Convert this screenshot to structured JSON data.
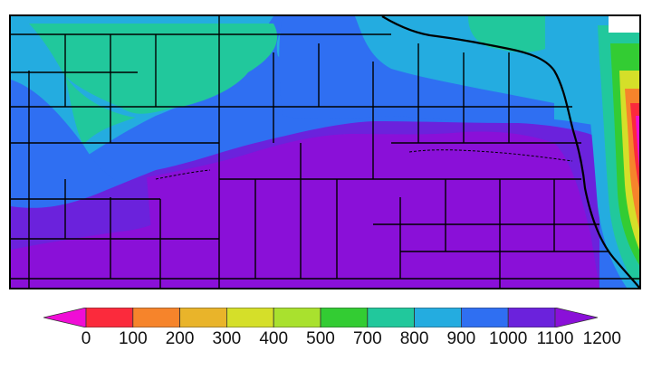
{
  "colorbar": {
    "labels": [
      "0",
      "100",
      "200",
      "300",
      "400",
      "500",
      "700",
      "800",
      "900",
      "1000",
      "1100",
      "1200"
    ],
    "colors": [
      "#fb2a3c",
      "#f6842b",
      "#e9b42a",
      "#d5df29",
      "#a9e12e",
      "#33cc33",
      "#21c89c",
      "#24ace0",
      "#2f6ff2",
      "#6b22dc"
    ],
    "under_color": "#f00dd6",
    "over_color": "#8a10d8"
  },
  "map_colors": {
    "purple": "#8a10d8",
    "violet": "#6b22dc",
    "blue": "#2f6ff2",
    "lightblue": "#24ace0",
    "teal": "#21c89c",
    "green": "#33cc33",
    "yellow": "#d5df29",
    "orange": "#f6842b",
    "red": "#fb2a3c",
    "magenta": "#f00dd6",
    "border": "#000000"
  },
  "icons": {
    "unavailable_patch": "white-no-data-patch"
  }
}
